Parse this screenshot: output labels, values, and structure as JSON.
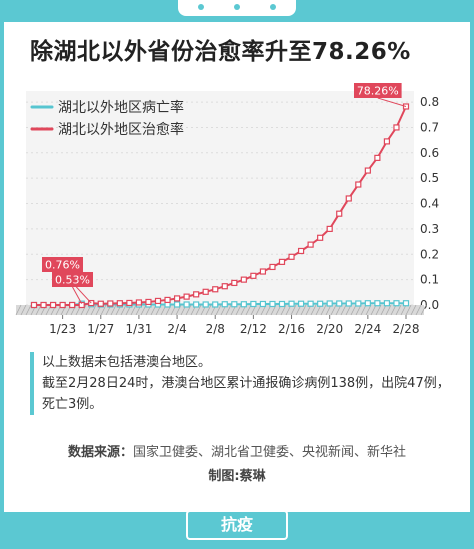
{
  "title": "除湖北以外省份治愈率升至78.26%",
  "note": {
    "line1": "以上数据未包括港澳台地区。",
    "line2": "截至2月28日24时，港澳台地区累计通报确诊病例138例，出院47例，死亡3例。"
  },
  "source": {
    "label": "数据来源：",
    "text": "国家卫健委、湖北省卫健委、央视新闻、新华社"
  },
  "credit": "制图:蔡琳",
  "footer_badge": "抗疫",
  "colors": {
    "accent": "#5bc8d2",
    "red": "#e0475b",
    "teal": "#56c5d0"
  },
  "chart_data": {
    "type": "line",
    "title": "",
    "xlabel": "",
    "ylabel": "",
    "x_ticks": [
      "1/23",
      "1/27",
      "1/31",
      "2/4",
      "2/8",
      "2/12",
      "2/16",
      "2/20",
      "2/24",
      "2/28"
    ],
    "y_ticks": [
      "0.0",
      "0.1",
      "0.2",
      "0.3",
      "0.4",
      "0.5",
      "0.6",
      "0.7",
      "0.8"
    ],
    "ylim": [
      0,
      0.82
    ],
    "x": [
      "1/20",
      "1/21",
      "1/22",
      "1/23",
      "1/24",
      "1/25",
      "1/26",
      "1/27",
      "1/28",
      "1/29",
      "1/30",
      "1/31",
      "2/1",
      "2/2",
      "2/3",
      "2/4",
      "2/5",
      "2/6",
      "2/7",
      "2/8",
      "2/9",
      "2/10",
      "2/11",
      "2/12",
      "2/13",
      "2/14",
      "2/15",
      "2/16",
      "2/17",
      "2/18",
      "2/19",
      "2/20",
      "2/21",
      "2/22",
      "2/23",
      "2/24",
      "2/25",
      "2/26",
      "2/27",
      "2/28"
    ],
    "series": [
      {
        "name": "湖北以外地区病亡率",
        "color": "#56c5d0",
        "values": [
          0,
          0,
          0,
          0,
          0,
          0.0053,
          0.003,
          0.002,
          0.002,
          0.002,
          0.002,
          0.002,
          0.002,
          0.002,
          0.002,
          0.002,
          0.002,
          0.002,
          0.002,
          0.002,
          0.003,
          0.003,
          0.003,
          0.004,
          0.004,
          0.004,
          0.004,
          0.005,
          0.005,
          0.005,
          0.005,
          0.006,
          0.006,
          0.006,
          0.006,
          0.007,
          0.007,
          0.007,
          0.007,
          0.007
        ]
      },
      {
        "name": "湖北以外地区治愈率",
        "color": "#e0475b",
        "values": [
          0,
          0,
          0,
          0,
          0,
          0,
          0.0076,
          0.005,
          0.006,
          0.007,
          0.008,
          0.01,
          0.012,
          0.016,
          0.02,
          0.026,
          0.033,
          0.042,
          0.052,
          0.062,
          0.074,
          0.087,
          0.1,
          0.115,
          0.132,
          0.15,
          0.17,
          0.19,
          0.213,
          0.238,
          0.265,
          0.3,
          0.36,
          0.42,
          0.475,
          0.53,
          0.58,
          0.645,
          0.7,
          0.7826
        ]
      }
    ],
    "annotations": [
      "78.26%",
      "0.76%",
      "0.53%"
    ],
    "grid": true,
    "legend": "top-left"
  }
}
